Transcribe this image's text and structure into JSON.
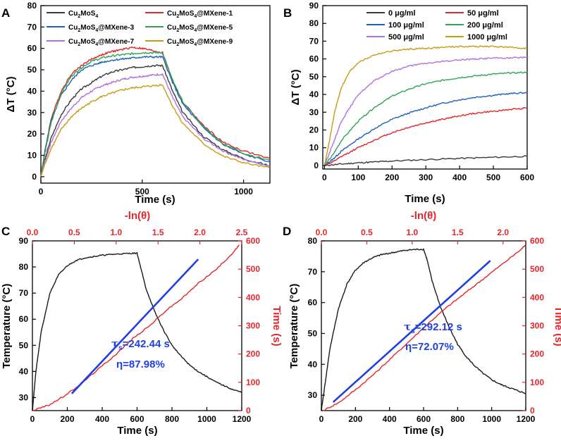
{
  "colors": {
    "black": "#1a1a1a",
    "red": "#e3262b",
    "blue": "#1c5fc0",
    "green": "#2ea454",
    "purple": "#b16fe2",
    "gold": "#c99a12",
    "darkgray": "#3a3a3a",
    "fit_blue": "#1f3fe6"
  },
  "chart_data": [
    {
      "panel_label": "A",
      "type": "line",
      "xlabel": "Time (s)",
      "ylabel": "ΔT (°C)",
      "xlim": [
        0,
        1130
      ],
      "ylim": [
        -3,
        80
      ],
      "xticks": [
        "0",
        "500",
        "1000"
      ],
      "xtick_values": [
        0,
        500,
        1000
      ],
      "yticks": [
        "0",
        "10",
        "20",
        "30",
        "40",
        "50",
        "60",
        "70",
        "80"
      ],
      "ytick_values": [
        0,
        10,
        20,
        30,
        40,
        50,
        60,
        70,
        80
      ],
      "legend_position": "top",
      "legend_text": [
        {
          "series": "Cu2MoS4",
          "base": "Cu",
          "s1": "2",
          "mid": "MoS",
          "s2": "4",
          "tail": ""
        },
        {
          "series": "Cu2MoS4@MXene-1",
          "base": "Cu",
          "s1": "2",
          "mid": "MoS",
          "s2": "4",
          "tail": "@MXene-1"
        },
        {
          "series": "Cu2MoS4@MXene-3",
          "base": "Cu",
          "s1": "2",
          "mid": "MoS",
          "s2": "4",
          "tail": "@MXene-3"
        },
        {
          "series": "Cu2MoS4@MXene-5",
          "base": "Cu",
          "s1": "2",
          "mid": "MoS",
          "s2": "4",
          "tail": "@MXene-5"
        },
        {
          "series": "Cu2MoS4@MXene-7",
          "base": "Cu",
          "s1": "2",
          "mid": "MoS",
          "s2": "4",
          "tail": "@MXene-7"
        },
        {
          "series": "Cu2MoS4@MXene-9",
          "base": "Cu",
          "s1": "2",
          "mid": "MoS",
          "s2": "4",
          "tail": "@MXene-9"
        }
      ],
      "series": [
        {
          "name": "Cu2MoS4",
          "color": "#3a3a3a",
          "x": [
            0,
            20,
            50,
            100,
            150,
            200,
            250,
            300,
            350,
            400,
            450,
            500,
            550,
            600,
            650,
            700,
            800,
            900,
            1000,
            1130
          ],
          "y": [
            0,
            8,
            18,
            29,
            36,
            41,
            44,
            47,
            49,
            50,
            51,
            51.5,
            52,
            52,
            40,
            30,
            19,
            12.5,
            8.5,
            5
          ]
        },
        {
          "name": "Cu2MoS4@MXene-1",
          "color": "#e3262b",
          "x": [
            0,
            20,
            50,
            100,
            150,
            200,
            250,
            300,
            350,
            400,
            450,
            500,
            550,
            600,
            650,
            700,
            800,
            900,
            1000,
            1130
          ],
          "y": [
            0,
            12,
            27,
            40,
            48,
            52,
            55,
            57,
            58.5,
            59.5,
            60.5,
            60,
            59,
            58,
            45,
            35,
            24,
            16,
            12,
            8.5
          ]
        },
        {
          "name": "Cu2MoS4@MXene-3",
          "color": "#1c5fc0",
          "x": [
            0,
            20,
            50,
            100,
            150,
            200,
            250,
            300,
            350,
            400,
            450,
            500,
            550,
            600,
            650,
            700,
            800,
            900,
            1000,
            1130
          ],
          "y": [
            0,
            12,
            26,
            38,
            45,
            50,
            52,
            53.5,
            54.5,
            55,
            55.5,
            56,
            56,
            56,
            44,
            34,
            23,
            15,
            10.5,
            7
          ]
        },
        {
          "name": "Cu2MoS4@MXene-5",
          "color": "#2ea454",
          "x": [
            0,
            20,
            50,
            100,
            150,
            200,
            250,
            300,
            350,
            400,
            450,
            500,
            550,
            600,
            650,
            700,
            800,
            900,
            1000,
            1130
          ],
          "y": [
            0,
            11,
            25,
            39,
            47,
            51,
            54,
            55.5,
            56.5,
            57,
            57.5,
            58,
            58,
            58,
            45,
            35,
            23.5,
            15.5,
            11,
            7.5
          ]
        },
        {
          "name": "Cu2MoS4@MXene-7",
          "color": "#b16fe2",
          "x": [
            0,
            20,
            50,
            100,
            150,
            200,
            250,
            300,
            350,
            400,
            450,
            500,
            550,
            600,
            650,
            700,
            800,
            900,
            1000,
            1130
          ],
          "y": [
            0,
            7,
            16,
            26,
            32,
            37,
            40,
            42.5,
            44,
            45.5,
            46.5,
            47,
            47.5,
            48,
            37,
            28,
            18,
            12,
            8,
            5
          ]
        },
        {
          "name": "Cu2MoS4@MXene-9",
          "color": "#c99a12",
          "x": [
            0,
            20,
            50,
            100,
            150,
            200,
            250,
            300,
            350,
            400,
            450,
            500,
            550,
            600,
            650,
            700,
            800,
            900,
            1000,
            1130
          ],
          "y": [
            0,
            6,
            13,
            22,
            28,
            32,
            35,
            37.5,
            39,
            40.5,
            41.5,
            42,
            42.5,
            43,
            33,
            25,
            15.5,
            9.5,
            6.5,
            4
          ]
        }
      ]
    },
    {
      "panel_label": "B",
      "type": "line",
      "xlabel": "Time (s)",
      "ylabel": "ΔT (°C)",
      "xlim": [
        -5,
        600
      ],
      "ylim": [
        -2,
        90
      ],
      "xticks": [
        "0",
        "100",
        "200",
        "300",
        "400",
        "500",
        "600"
      ],
      "xtick_values": [
        0,
        100,
        200,
        300,
        400,
        500,
        600
      ],
      "yticks": [
        "0",
        "10",
        "20",
        "30",
        "40",
        "50",
        "60",
        "70",
        "80",
        "90"
      ],
      "ytick_values": [
        0,
        10,
        20,
        30,
        40,
        50,
        60,
        70,
        80,
        90
      ],
      "legend_position": "top-right",
      "series": [
        {
          "name": "0 μg/ml",
          "color": "#3a3a3a",
          "x": [
            0,
            50,
            100,
            150,
            200,
            300,
            400,
            500,
            600
          ],
          "y": [
            0,
            0.8,
            1.5,
            2,
            2.5,
            3.3,
            4,
            4.6,
            5.2
          ]
        },
        {
          "name": "50 μg/ml",
          "color": "#e3262b",
          "x": [
            0,
            25,
            50,
            100,
            150,
            200,
            250,
            300,
            350,
            400,
            450,
            500,
            550,
            600
          ],
          "y": [
            0,
            2,
            5,
            10,
            14.5,
            18.5,
            21.5,
            24,
            26,
            28,
            29.5,
            30.5,
            31.5,
            32.5
          ]
        },
        {
          "name": "100 μg/ml",
          "color": "#1c5fc0",
          "x": [
            0,
            25,
            50,
            100,
            150,
            200,
            250,
            300,
            350,
            400,
            450,
            500,
            550,
            600
          ],
          "y": [
            0,
            3.5,
            8,
            15,
            21,
            26,
            29.5,
            32.5,
            35,
            37,
            38.5,
            39.5,
            40.5,
            41
          ]
        },
        {
          "name": "200 μg/ml",
          "color": "#2ea454",
          "x": [
            0,
            25,
            50,
            100,
            150,
            200,
            250,
            300,
            350,
            400,
            450,
            500,
            550,
            600
          ],
          "y": [
            0,
            6,
            14,
            25,
            33,
            39,
            43,
            46,
            48,
            49.5,
            50.5,
            51.5,
            52,
            52.5
          ]
        },
        {
          "name": "500 μg/ml",
          "color": "#b16fe2",
          "x": [
            0,
            25,
            50,
            100,
            150,
            200,
            250,
            300,
            350,
            400,
            450,
            500,
            550,
            600
          ],
          "y": [
            0,
            12,
            25,
            40,
            48,
            53,
            56,
            57.5,
            58.5,
            59.5,
            60,
            60.5,
            60.5,
            61
          ]
        },
        {
          "name": "1000 μg/ml",
          "color": "#c99a12",
          "x": [
            0,
            15,
            30,
            50,
            75,
            100,
            150,
            200,
            250,
            300,
            350,
            400,
            450,
            500,
            550,
            600
          ],
          "y": [
            0,
            14,
            30,
            44,
            53,
            58,
            62.5,
            64.5,
            65.5,
            66,
            66.5,
            67,
            67,
            67,
            66.5,
            66
          ]
        }
      ]
    },
    {
      "panel_label": "C",
      "type": "line",
      "xlabel": "Time (s)",
      "ylabel": "Temperature (°C)",
      "x2label": "-ln(θ)",
      "y2label": "Time (s)",
      "xlim": [
        0,
        1200
      ],
      "ylim": [
        25,
        90
      ],
      "x2lim": [
        0,
        2.5
      ],
      "y2lim": [
        0,
        600
      ],
      "xticks": [
        "0",
        "200",
        "400",
        "600",
        "800",
        "1000",
        "1200"
      ],
      "xtick_values": [
        0,
        200,
        400,
        600,
        800,
        1000,
        1200
      ],
      "yticks": [
        "30",
        "40",
        "50",
        "60",
        "70",
        "80",
        "90"
      ],
      "ytick_values": [
        30,
        40,
        50,
        60,
        70,
        80,
        90
      ],
      "x2ticks": [
        "0.0",
        "0.5",
        "1.0",
        "1.5",
        "2.0",
        "2.5"
      ],
      "x2tick_values": [
        0,
        0.5,
        1.0,
        1.5,
        2.0,
        2.5
      ],
      "y2ticks": [
        "0",
        "100",
        "200",
        "300",
        "400",
        "500",
        "600"
      ],
      "y2tick_values": [
        0,
        100,
        200,
        300,
        400,
        500,
        600
      ],
      "heating_cooling": {
        "name": "Temperature",
        "color": "#1a1a1a",
        "x": [
          0,
          20,
          50,
          100,
          150,
          200,
          250,
          300,
          350,
          400,
          450,
          500,
          550,
          600,
          620,
          650,
          700,
          750,
          800,
          850,
          900,
          950,
          1000,
          1050,
          1100,
          1150,
          1200
        ],
        "y": [
          25,
          40,
          55,
          70,
          77,
          80.5,
          82.5,
          83.5,
          84,
          84.5,
          84.8,
          85,
          85.2,
          85.3,
          80,
          72,
          63,
          56,
          50,
          46,
          42.5,
          40,
          38,
          36,
          34.5,
          33,
          32
        ]
      },
      "ln_theta_time": {
        "name": "Time vs -ln(θ)",
        "color": "#e3262b",
        "x": [
          0,
          0.2,
          0.4,
          0.6,
          0.8,
          1.0,
          1.2,
          1.4,
          1.6,
          1.8,
          2.0,
          2.2,
          2.4,
          2.47
        ],
        "y": [
          0,
          20,
          55,
          100,
          150,
          200,
          255,
          300,
          355,
          400,
          455,
          500,
          560,
          585
        ]
      },
      "fit": {
        "name": "Linear fit",
        "color": "#1f3fe6",
        "x": [
          0.47,
          1.98
        ],
        "y": [
          60,
          535
        ]
      },
      "annotations": {
        "tau_symbol": "τ",
        "tau_sub": "s",
        "tau_value": "=242.44 s",
        "eta_text": "η=87.98%"
      }
    },
    {
      "panel_label": "D",
      "type": "line",
      "xlabel": "Time (s)",
      "ylabel": "Temperature (°C)",
      "x2label": "-ln(θ)",
      "y2label": "Time (s)",
      "xlim": [
        0,
        1200
      ],
      "ylim": [
        25,
        80
      ],
      "x2lim": [
        0,
        2.25
      ],
      "y2lim": [
        0,
        600
      ],
      "xticks": [
        "0",
        "200",
        "400",
        "600",
        "800",
        "1000",
        "1200"
      ],
      "xtick_values": [
        0,
        200,
        400,
        600,
        800,
        1000,
        1200
      ],
      "yticks": [
        "30",
        "40",
        "50",
        "60",
        "70",
        "80"
      ],
      "ytick_values": [
        30,
        40,
        50,
        60,
        70,
        80
      ],
      "x2ticks": [
        "0.0",
        "0.5",
        "1.0",
        "1.5",
        "2.0"
      ],
      "x2tick_values": [
        0,
        0.5,
        1.0,
        1.5,
        2.0
      ],
      "y2ticks": [
        "0",
        "100",
        "200",
        "300",
        "400",
        "500",
        "600"
      ],
      "y2tick_values": [
        0,
        100,
        200,
        300,
        400,
        500,
        600
      ],
      "heating_cooling": {
        "name": "Temperature",
        "color": "#1a1a1a",
        "x": [
          0,
          20,
          50,
          100,
          150,
          200,
          250,
          300,
          350,
          400,
          450,
          500,
          550,
          600,
          620,
          650,
          700,
          750,
          800,
          850,
          900,
          950,
          1000,
          1050,
          1100,
          1150,
          1200
        ],
        "y": [
          25,
          33,
          45,
          58,
          66,
          70.5,
          73,
          74.5,
          75.5,
          76,
          76.5,
          77,
          77.2,
          77.3,
          74,
          67,
          58.5,
          52,
          46.5,
          42.5,
          39.5,
          37,
          35,
          33.5,
          32.5,
          31.5,
          30.5
        ]
      },
      "ln_theta_time": {
        "name": "Time vs -ln(θ)",
        "color": "#e3262b",
        "x": [
          0.02,
          0.2,
          0.4,
          0.6,
          0.8,
          1.0,
          1.2,
          1.4,
          1.6,
          1.8,
          2.0,
          2.2,
          2.24
        ],
        "y": [
          0,
          30,
          80,
          135,
          195,
          255,
          315,
          370,
          420,
          470,
          520,
          570,
          585
        ]
      },
      "fit": {
        "name": "Linear fit",
        "color": "#1f3fe6",
        "x": [
          0.13,
          1.86
        ],
        "y": [
          30,
          530
        ]
      },
      "annotations": {
        "tau_symbol": "τ",
        "tau_sub": "s",
        "tau_value": "=292.12 s",
        "eta_text": "η=72.07%"
      }
    }
  ]
}
